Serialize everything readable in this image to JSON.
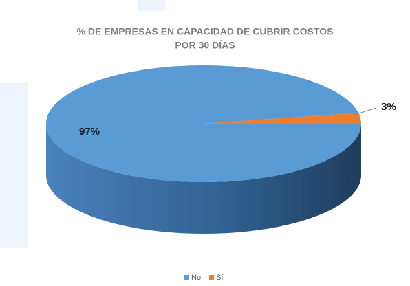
{
  "chart_data": {
    "type": "pie",
    "title": [
      "% DE EMPRESAS EN CAPACIDAD DE CUBRIR COSTOS",
      "POR 30 DÍAS"
    ],
    "categories": [
      "No",
      "Sí"
    ],
    "values": [
      97,
      3
    ],
    "value_labels": [
      "97%",
      "3%"
    ],
    "colors": [
      "#5b9bd5",
      "#ed7d31"
    ],
    "side_colors": [
      "#2f5f8f",
      "#b35a1f"
    ],
    "legend": "bottom"
  }
}
